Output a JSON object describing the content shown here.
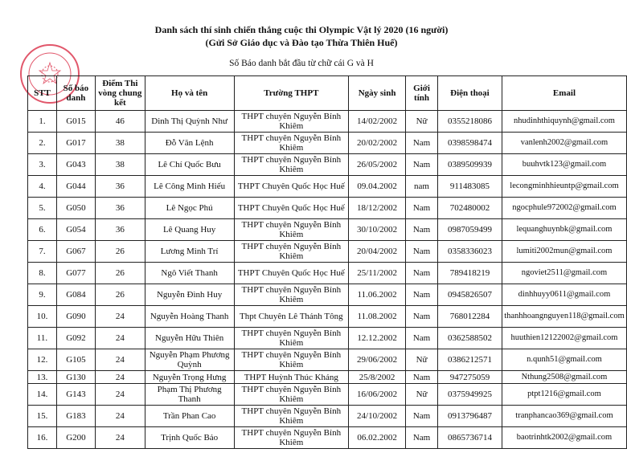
{
  "document": {
    "title": "Danh sách thí sinh chiến thắng cuộc thi Olympic Vật lý 2020 (16 người)",
    "subtitle": "(Gửi Sở Giáo dục và Đào tạo Thừa Thiên Huế)",
    "note": "Số Báo danh bắt đầu từ chữ cái G và H",
    "seal_color": "#d8203a"
  },
  "table": {
    "headers": [
      "STT",
      "Số báo danh",
      "Điểm Thi vòng chung kết",
      "Họ và tên",
      "Trường THPT",
      "Ngày sinh",
      "Giới tính",
      "Điện thoại",
      "Email"
    ],
    "rows": [
      [
        "1.",
        "G015",
        "46",
        "Dinh Thị Quỳnh Như",
        "THPT chuyên Nguyễn Bỉnh Khiêm",
        "14/02/2002",
        "Nữ",
        "0355218086",
        "nhudinhthiquynh@gmail.com"
      ],
      [
        "2.",
        "G017",
        "38",
        "Đỗ Văn Lệnh",
        "THPT chuyên Nguyễn Bỉnh Khiêm",
        "20/02/2002",
        "Nam",
        "0398598474",
        "vanlenh2002@gmail.com"
      ],
      [
        "3.",
        "G043",
        "38",
        "Lê Chí Quốc Bưu",
        "THPT chuyên Nguyễn Bỉnh Khiêm",
        "26/05/2002",
        "Nam",
        "0389509939",
        "buuhvtk123@gmail.com"
      ],
      [
        "4.",
        "G044",
        "36",
        "Lê Công Minh Hiếu",
        "THPT Chuyên Quốc Học Huế",
        "09.04.2002",
        "nam",
        "911483085",
        "lecongminhhieuntp@gmail.com"
      ],
      [
        "5.",
        "G050",
        "36",
        "Lê Ngọc Phú",
        "THPT Chuyên Quốc Học Huế",
        "18/12/2002",
        "Nam",
        "702480002",
        "ngocphule972002@gmail.com"
      ],
      [
        "6.",
        "G054",
        "36",
        "Lê Quang Huy",
        "THPT chuyên Nguyễn Bỉnh Khiêm",
        "30/10/2002",
        "Nam",
        "0987059499",
        "lequanghuynbk@gmail.com"
      ],
      [
        "7.",
        "G067",
        "26",
        "Lương Minh Trí",
        "THPT chuyên Nguyễn Bỉnh Khiêm",
        "20/04/2002",
        "Nam",
        "0358336023",
        "lumiti2002mun@gmail.com"
      ],
      [
        "8.",
        "G077",
        "26",
        "Ngô Viết Thanh",
        "THPT Chuyên Quốc Học Huế",
        "25/11/2002",
        "Nam",
        "789418219",
        "ngoviet2511@gmail.com"
      ],
      [
        "9.",
        "G084",
        "26",
        "Nguyễn Đình Huy",
        "THPT chuyên Nguyễn Bỉnh Khiêm",
        "11.06.2002",
        "Nam",
        "0945826507",
        "dinhhuyy0611@gmail.com"
      ],
      [
        "10.",
        "G090",
        "24",
        "Nguyễn Hoàng Thanh",
        "Thpt Chuyên Lê Thánh Tông",
        "11.08.2002",
        "Nam",
        "768012284",
        "thanhhoangnguyen118@gmail.com"
      ],
      [
        "11.",
        "G092",
        "24",
        "Nguyễn Hữu Thiên",
        "THPT chuyên Nguyễn Bỉnh Khiêm",
        "12.12.2002",
        "Nam",
        "0362588502",
        "huuthien12122002@gmail.com"
      ],
      [
        "12.",
        "G105",
        "24",
        "Nguyễn Phạm Phương Quỳnh",
        "THPT chuyên Nguyễn Bỉnh Khiêm",
        "29/06/2002",
        "Nữ",
        "0386212571",
        "n.qunh51@gmail.com"
      ],
      [
        "13.",
        "G130",
        "24",
        "Nguyễn Trọng Hưng",
        "THPT Huỳnh Thúc Kháng",
        "25/8/2002",
        "Nam",
        "947275059",
        "Nthung2508@gmail.com"
      ],
      [
        "14.",
        "G143",
        "24",
        "Phạm Thị Phương Thanh",
        "THPT chuyên Nguyễn Bỉnh Khiêm",
        "16/06/2002",
        "Nữ",
        "0375949925",
        "ptpt1216@gmail.com"
      ],
      [
        "15.",
        "G183",
        "24",
        "Trần Phan Cao",
        "THPT chuyên Nguyễn Bỉnh Khiêm",
        "24/10/2002",
        "Nam",
        "0913796487",
        "tranphancao369@gmail.com"
      ],
      [
        "16.",
        "G200",
        "24",
        "Trịnh Quốc Bảo",
        "THPT chuyên Nguyễn Bỉnh Khiêm",
        "06.02.2002",
        "Nam",
        "0865736714",
        "baotrinhtk2002@gmail.com"
      ]
    ]
  }
}
